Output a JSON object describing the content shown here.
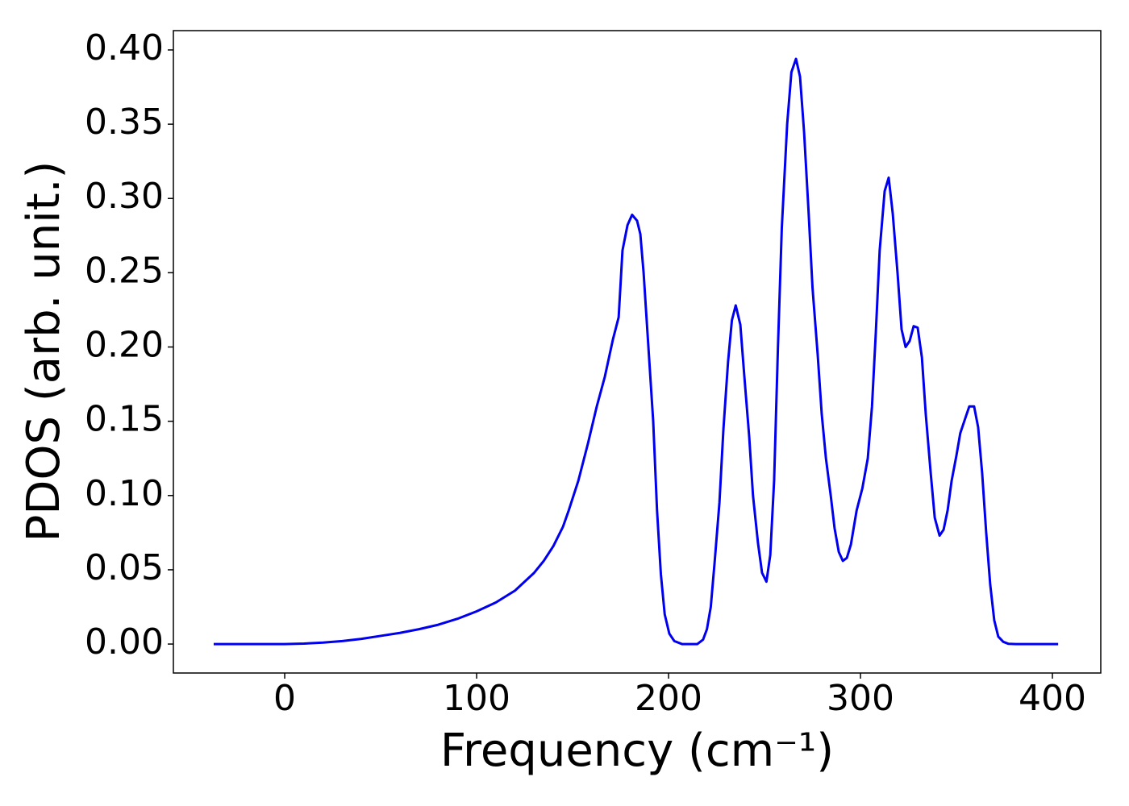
{
  "chart_data": {
    "type": "line",
    "xlabel": "Frequency (cm⁻¹)",
    "ylabel": "PDOS (arb. unit.)",
    "x": [
      -37,
      0,
      10,
      20,
      30,
      40,
      50,
      60,
      70,
      80,
      90,
      100,
      110,
      120,
      130,
      135,
      140,
      145,
      148,
      153,
      158,
      162.6,
      166.8,
      171,
      174,
      176,
      178.6,
      181,
      183.6,
      185.3,
      187,
      189,
      192,
      194,
      196,
      198,
      200.4,
      203,
      207,
      215,
      218,
      220,
      222,
      224,
      226.5,
      228.6,
      231,
      233,
      235,
      237.4,
      239.5,
      242,
      244,
      246.6,
      248.7,
      251,
      253,
      255,
      257,
      259,
      261.8,
      264,
      266.4,
      268.5,
      270.6,
      273,
      275,
      277.7,
      279.8,
      282,
      284.5,
      286.5,
      288.7,
      290.8,
      292.9,
      295,
      298,
      301,
      303.8,
      306,
      308,
      310,
      312.6,
      314.7,
      316.8,
      319.3,
      321.4,
      323.5,
      325.6,
      327.7,
      329.8,
      332,
      334,
      336.6,
      338.7,
      341.2,
      343.3,
      345.4,
      347.5,
      350,
      352,
      354.6,
      356.7,
      359.2,
      361.3,
      363.4,
      365.5,
      367.6,
      369.7,
      371.8,
      374.4,
      377,
      381,
      403
    ],
    "series": [
      {
        "color": "#0000ee",
        "values": [
          0,
          0,
          0.0003,
          0.001,
          0.002,
          0.0035,
          0.0055,
          0.0075,
          0.01,
          0.013,
          0.017,
          0.022,
          0.028,
          0.036,
          0.048,
          0.056,
          0.066,
          0.079,
          0.09,
          0.11,
          0.135,
          0.16,
          0.18,
          0.205,
          0.22,
          0.265,
          0.282,
          0.289,
          0.285,
          0.276,
          0.25,
          0.21,
          0.15,
          0.09,
          0.047,
          0.02,
          0.007,
          0.002,
          0,
          0,
          0.003,
          0.01,
          0.025,
          0.055,
          0.095,
          0.145,
          0.19,
          0.218,
          0.228,
          0.215,
          0.18,
          0.14,
          0.1,
          0.068,
          0.048,
          0.042,
          0.06,
          0.11,
          0.2,
          0.28,
          0.35,
          0.385,
          0.394,
          0.382,
          0.345,
          0.29,
          0.24,
          0.195,
          0.155,
          0.125,
          0.1,
          0.078,
          0.062,
          0.056,
          0.058,
          0.067,
          0.09,
          0.105,
          0.125,
          0.16,
          0.21,
          0.265,
          0.305,
          0.314,
          0.29,
          0.25,
          0.212,
          0.2,
          0.204,
          0.214,
          0.213,
          0.193,
          0.155,
          0.115,
          0.085,
          0.073,
          0.077,
          0.09,
          0.11,
          0.127,
          0.142,
          0.152,
          0.16,
          0.16,
          0.146,
          0.115,
          0.075,
          0.04,
          0.016,
          0.005,
          0.0015,
          0.0002,
          0,
          0
        ]
      }
    ],
    "xlim": [
      -58,
      425.2
    ],
    "ylim": [
      -0.0195,
      0.413
    ],
    "xticks": [
      0,
      100,
      200,
      300,
      400
    ],
    "yticks": [
      {
        "value": 0,
        "label": "0.00"
      },
      {
        "value": 0.05,
        "label": "0.05"
      },
      {
        "value": 0.1,
        "label": "0.10"
      },
      {
        "value": 0.15,
        "label": "0.15"
      },
      {
        "value": 0.2,
        "label": "0.20"
      },
      {
        "value": 0.25,
        "label": "0.25"
      },
      {
        "value": 0.3,
        "label": "0.30"
      },
      {
        "value": 0.35,
        "label": "0.35"
      },
      {
        "value": 0.4,
        "label": "0.40"
      }
    ],
    "grid": false
  }
}
